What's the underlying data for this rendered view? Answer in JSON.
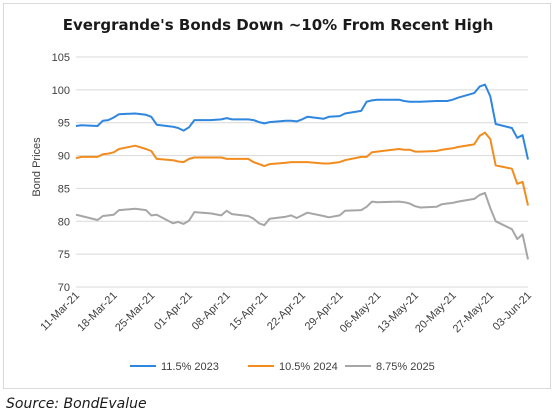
{
  "chart_data": {
    "type": "line",
    "title": "Evergrande's Bonds Down ~10% From Recent High",
    "ylabel": "Bond Prices",
    "xlabel": "",
    "ylim": [
      70,
      105
    ],
    "yticks": [
      70,
      75,
      80,
      85,
      90,
      95,
      100,
      105
    ],
    "x_start": "11-Mar-21",
    "x_end": "03-Jun-21",
    "xticks": [
      "11-Mar-21",
      "18-Mar-21",
      "25-Mar-21",
      "01-Apr-21",
      "08-Apr-21",
      "15-Apr-21",
      "22-Apr-21",
      "29-Apr-21",
      "06-May-21",
      "13-May-21",
      "20-May-21",
      "27-May-21",
      "03-Jun-21"
    ],
    "grid": true,
    "legend": "bottom",
    "series": [
      {
        "name": "11.5% 2023",
        "color": "#2e86de",
        "points": [
          [
            "11-Mar-21",
            94.5
          ],
          [
            "12-Mar-21",
            94.6
          ],
          [
            "15-Mar-21",
            94.5
          ],
          [
            "16-Mar-21",
            95.3
          ],
          [
            "17-Mar-21",
            95.4
          ],
          [
            "18-Mar-21",
            95.8
          ],
          [
            "19-Mar-21",
            96.3
          ],
          [
            "22-Mar-21",
            96.4
          ],
          [
            "24-Mar-21",
            96.2
          ],
          [
            "25-Mar-21",
            95.9
          ],
          [
            "26-Mar-21",
            94.7
          ],
          [
            "29-Mar-21",
            94.4
          ],
          [
            "30-Mar-21",
            94.2
          ],
          [
            "31-Mar-21",
            93.8
          ],
          [
            "01-Apr-21",
            94.3
          ],
          [
            "02-Apr-21",
            95.4
          ],
          [
            "05-Apr-21",
            95.4
          ],
          [
            "07-Apr-21",
            95.5
          ],
          [
            "08-Apr-21",
            95.7
          ],
          [
            "09-Apr-21",
            95.5
          ],
          [
            "12-Apr-21",
            95.5
          ],
          [
            "13-Apr-21",
            95.4
          ],
          [
            "14-Apr-21",
            95.1
          ],
          [
            "15-Apr-21",
            94.9
          ],
          [
            "16-Apr-21",
            95.1
          ],
          [
            "19-Apr-21",
            95.3
          ],
          [
            "20-Apr-21",
            95.3
          ],
          [
            "21-Apr-21",
            95.2
          ],
          [
            "22-Apr-21",
            95.5
          ],
          [
            "23-Apr-21",
            95.9
          ],
          [
            "26-Apr-21",
            95.6
          ],
          [
            "27-Apr-21",
            95.9
          ],
          [
            "29-Apr-21",
            96.0
          ],
          [
            "30-Apr-21",
            96.4
          ],
          [
            "03-May-21",
            96.8
          ],
          [
            "04-May-21",
            98.2
          ],
          [
            "05-May-21",
            98.4
          ],
          [
            "06-May-21",
            98.5
          ],
          [
            "10-May-21",
            98.5
          ],
          [
            "11-May-21",
            98.3
          ],
          [
            "12-May-21",
            98.2
          ],
          [
            "13-May-21",
            98.2
          ],
          [
            "14-May-21",
            98.2
          ],
          [
            "17-May-21",
            98.3
          ],
          [
            "18-May-21",
            98.3
          ],
          [
            "19-May-21",
            98.3
          ],
          [
            "20-May-21",
            98.5
          ],
          [
            "21-May-21",
            98.8
          ],
          [
            "24-May-21",
            99.5
          ],
          [
            "25-May-21",
            100.5
          ],
          [
            "26-May-21",
            100.8
          ],
          [
            "27-May-21",
            99.0
          ],
          [
            "28-May-21",
            94.8
          ],
          [
            "31-May-21",
            94.2
          ],
          [
            "01-Jun-21",
            92.7
          ],
          [
            "02-Jun-21",
            93.1
          ],
          [
            "03-Jun-21",
            89.4
          ]
        ]
      },
      {
        "name": "10.5% 2024",
        "color": "#f28c1e",
        "points": [
          [
            "11-Mar-21",
            89.6
          ],
          [
            "12-Mar-21",
            89.8
          ],
          [
            "15-Mar-21",
            89.8
          ],
          [
            "16-Mar-21",
            90.2
          ],
          [
            "17-Mar-21",
            90.3
          ],
          [
            "18-Mar-21",
            90.5
          ],
          [
            "19-Mar-21",
            91.0
          ],
          [
            "22-Mar-21",
            91.5
          ],
          [
            "24-Mar-21",
            91.0
          ],
          [
            "25-Mar-21",
            90.7
          ],
          [
            "26-Mar-21",
            89.5
          ],
          [
            "29-Mar-21",
            89.3
          ],
          [
            "30-Mar-21",
            89.1
          ],
          [
            "31-Mar-21",
            89.0
          ],
          [
            "01-Apr-21",
            89.5
          ],
          [
            "02-Apr-21",
            89.7
          ],
          [
            "05-Apr-21",
            89.7
          ],
          [
            "07-Apr-21",
            89.7
          ],
          [
            "08-Apr-21",
            89.5
          ],
          [
            "09-Apr-21",
            89.5
          ],
          [
            "12-Apr-21",
            89.5
          ],
          [
            "13-Apr-21",
            89.0
          ],
          [
            "14-Apr-21",
            88.7
          ],
          [
            "15-Apr-21",
            88.4
          ],
          [
            "16-Apr-21",
            88.7
          ],
          [
            "19-Apr-21",
            88.9
          ],
          [
            "20-Apr-21",
            89.0
          ],
          [
            "21-Apr-21",
            89.0
          ],
          [
            "22-Apr-21",
            89.0
          ],
          [
            "23-Apr-21",
            89.0
          ],
          [
            "26-Apr-21",
            88.8
          ],
          [
            "27-Apr-21",
            88.8
          ],
          [
            "29-Apr-21",
            89.0
          ],
          [
            "30-Apr-21",
            89.3
          ],
          [
            "03-May-21",
            89.8
          ],
          [
            "04-May-21",
            89.8
          ],
          [
            "05-May-21",
            90.5
          ],
          [
            "06-May-21",
            90.6
          ],
          [
            "10-May-21",
            91.0
          ],
          [
            "11-May-21",
            90.9
          ],
          [
            "12-May-21",
            90.9
          ],
          [
            "13-May-21",
            90.6
          ],
          [
            "14-May-21",
            90.6
          ],
          [
            "17-May-21",
            90.7
          ],
          [
            "18-May-21",
            90.9
          ],
          [
            "19-May-21",
            91.0
          ],
          [
            "20-May-21",
            91.1
          ],
          [
            "21-May-21",
            91.3
          ],
          [
            "24-May-21",
            91.7
          ],
          [
            "25-May-21",
            93.0
          ],
          [
            "26-May-21",
            93.5
          ],
          [
            "27-May-21",
            92.5
          ],
          [
            "28-May-21",
            88.5
          ],
          [
            "31-May-21",
            88.0
          ],
          [
            "01-Jun-21",
            85.7
          ],
          [
            "02-Jun-21",
            86.0
          ],
          [
            "03-Jun-21",
            82.4
          ]
        ]
      },
      {
        "name": "8.75% 2025",
        "color": "#a6a6a6",
        "points": [
          [
            "11-Mar-21",
            81.0
          ],
          [
            "12-Mar-21",
            80.8
          ],
          [
            "15-Mar-21",
            80.2
          ],
          [
            "16-Mar-21",
            80.8
          ],
          [
            "17-Mar-21",
            80.9
          ],
          [
            "18-Mar-21",
            81.0
          ],
          [
            "19-Mar-21",
            81.7
          ],
          [
            "22-Mar-21",
            81.9
          ],
          [
            "24-Mar-21",
            81.7
          ],
          [
            "25-Mar-21",
            80.9
          ],
          [
            "26-Mar-21",
            81.0
          ],
          [
            "29-Mar-21",
            79.7
          ],
          [
            "30-Mar-21",
            79.9
          ],
          [
            "31-Mar-21",
            79.6
          ],
          [
            "01-Apr-21",
            80.1
          ],
          [
            "02-Apr-21",
            81.4
          ],
          [
            "05-Apr-21",
            81.2
          ],
          [
            "07-Apr-21",
            80.9
          ],
          [
            "08-Apr-21",
            81.6
          ],
          [
            "09-Apr-21",
            81.1
          ],
          [
            "12-Apr-21",
            80.8
          ],
          [
            "13-Apr-21",
            80.4
          ],
          [
            "14-Apr-21",
            79.7
          ],
          [
            "15-Apr-21",
            79.4
          ],
          [
            "16-Apr-21",
            80.4
          ],
          [
            "19-Apr-21",
            80.7
          ],
          [
            "20-Apr-21",
            80.9
          ],
          [
            "21-Apr-21",
            80.5
          ],
          [
            "22-Apr-21",
            80.9
          ],
          [
            "23-Apr-21",
            81.3
          ],
          [
            "26-Apr-21",
            80.8
          ],
          [
            "27-Apr-21",
            80.6
          ],
          [
            "29-Apr-21",
            80.9
          ],
          [
            "30-Apr-21",
            81.6
          ],
          [
            "03-May-21",
            81.7
          ],
          [
            "04-May-21",
            82.2
          ],
          [
            "05-May-21",
            83.0
          ],
          [
            "06-May-21",
            82.9
          ],
          [
            "10-May-21",
            83.0
          ],
          [
            "11-May-21",
            82.9
          ],
          [
            "12-May-21",
            82.7
          ],
          [
            "13-May-21",
            82.3
          ],
          [
            "14-May-21",
            82.1
          ],
          [
            "17-May-21",
            82.2
          ],
          [
            "18-May-21",
            82.6
          ],
          [
            "19-May-21",
            82.7
          ],
          [
            "20-May-21",
            82.8
          ],
          [
            "21-May-21",
            83.0
          ],
          [
            "24-May-21",
            83.4
          ],
          [
            "25-May-21",
            84.0
          ],
          [
            "26-May-21",
            84.3
          ],
          [
            "27-May-21",
            82.0
          ],
          [
            "28-May-21",
            80.0
          ],
          [
            "31-May-21",
            78.8
          ],
          [
            "01-Jun-21",
            77.3
          ],
          [
            "02-Jun-21",
            78.0
          ],
          [
            "03-Jun-21",
            74.2
          ]
        ]
      }
    ]
  },
  "source": "Source: BondEvalue"
}
